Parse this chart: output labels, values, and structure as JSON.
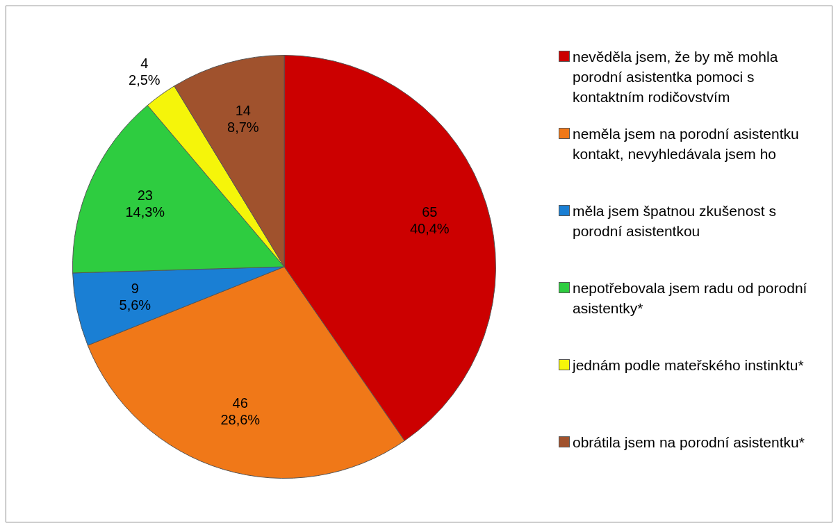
{
  "chart_data": {
    "type": "pie",
    "categories": [
      "nevěděla jsem, že by mě mohla porodní asistentka pomoci s kontaktním rodičovstvím",
      "neměla jsem na porodní asistentku kontakt, nevyhledávala jsem ho",
      "měla jsem špatnou zkušenost s porodní asistentkou",
      "nepotřebovala jsem radu od porodní asistentky*",
      "jednám podle mateřského instinktu*",
      "obrátila jsem na porodní asistentku*"
    ],
    "values": [
      65,
      46,
      9,
      23,
      4,
      14
    ],
    "colors": [
      "#cc0000",
      "#f07818",
      "#1a7fd4",
      "#2ecc40",
      "#f5f50a",
      "#a0522d"
    ],
    "value_labels": [
      "65\n40,4%",
      "46\n28,6%",
      "9\n5,6%",
      "23\n14,3%",
      "4\n2,5%",
      "14\n8,7%"
    ],
    "legend": "right"
  }
}
